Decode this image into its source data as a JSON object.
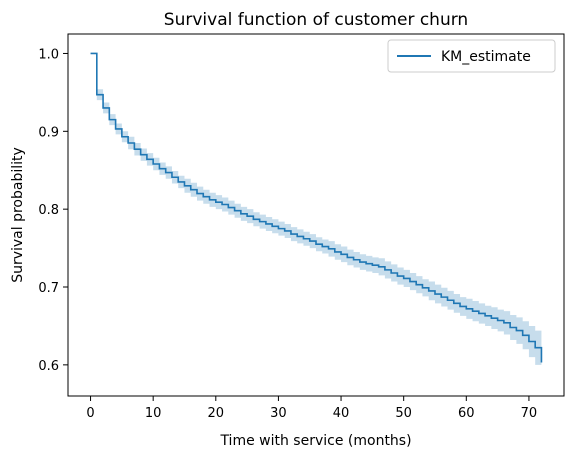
{
  "chart_data": {
    "type": "line",
    "title": "Survival function of customer churn",
    "xlabel": "Time with service (months)",
    "ylabel": "Survival probability",
    "xlim": [
      -3.6,
      75.6
    ],
    "ylim": [
      0.56,
      1.025
    ],
    "xticks": [
      0,
      10,
      20,
      30,
      40,
      50,
      60,
      70
    ],
    "yticks": [
      0.6,
      0.7,
      0.8,
      0.9,
      1.0
    ],
    "ytick_labels": [
      "0.6",
      "0.7",
      "0.8",
      "0.9",
      "1.0"
    ],
    "grid": false,
    "legend_position": "top-right",
    "colors": {
      "line": "#1f77b4",
      "band": "#1f77b4",
      "legend_border": "#cccccc"
    },
    "series": [
      {
        "name": "KM_estimate",
        "x": [
          0,
          1,
          2,
          3,
          4,
          5,
          6,
          7,
          8,
          9,
          10,
          11,
          12,
          13,
          14,
          15,
          16,
          17,
          18,
          19,
          20,
          21,
          22,
          23,
          24,
          25,
          26,
          27,
          28,
          29,
          30,
          31,
          32,
          33,
          34,
          35,
          36,
          37,
          38,
          39,
          40,
          41,
          42,
          43,
          44,
          45,
          46,
          47,
          48,
          49,
          50,
          51,
          52,
          53,
          54,
          55,
          56,
          57,
          58,
          59,
          60,
          61,
          62,
          63,
          64,
          65,
          66,
          67,
          68,
          69,
          70,
          71,
          72
        ],
        "y": [
          1.0,
          0.947,
          0.93,
          0.915,
          0.903,
          0.893,
          0.885,
          0.877,
          0.87,
          0.864,
          0.858,
          0.852,
          0.847,
          0.841,
          0.835,
          0.83,
          0.825,
          0.82,
          0.816,
          0.812,
          0.809,
          0.806,
          0.802,
          0.798,
          0.794,
          0.791,
          0.787,
          0.784,
          0.781,
          0.778,
          0.775,
          0.772,
          0.768,
          0.765,
          0.762,
          0.759,
          0.755,
          0.752,
          0.749,
          0.745,
          0.742,
          0.738,
          0.735,
          0.732,
          0.73,
          0.728,
          0.726,
          0.722,
          0.718,
          0.714,
          0.711,
          0.707,
          0.703,
          0.699,
          0.695,
          0.691,
          0.687,
          0.683,
          0.679,
          0.675,
          0.672,
          0.669,
          0.666,
          0.663,
          0.66,
          0.657,
          0.654,
          0.648,
          0.644,
          0.638,
          0.63,
          0.622,
          0.603
        ],
        "lower": [
          1.0,
          0.94,
          0.923,
          0.908,
          0.896,
          0.886,
          0.877,
          0.869,
          0.862,
          0.856,
          0.85,
          0.844,
          0.839,
          0.833,
          0.827,
          0.821,
          0.816,
          0.811,
          0.807,
          0.803,
          0.8,
          0.797,
          0.793,
          0.789,
          0.785,
          0.782,
          0.778,
          0.775,
          0.772,
          0.769,
          0.766,
          0.763,
          0.759,
          0.756,
          0.753,
          0.75,
          0.746,
          0.743,
          0.739,
          0.735,
          0.732,
          0.728,
          0.725,
          0.722,
          0.72,
          0.718,
          0.715,
          0.711,
          0.707,
          0.703,
          0.7,
          0.696,
          0.692,
          0.688,
          0.683,
          0.679,
          0.675,
          0.671,
          0.667,
          0.663,
          0.659,
          0.656,
          0.653,
          0.65,
          0.646,
          0.643,
          0.639,
          0.632,
          0.627,
          0.62,
          0.61,
          0.6,
          0.58
        ],
        "upper": [
          1.0,
          0.954,
          0.937,
          0.922,
          0.91,
          0.9,
          0.893,
          0.885,
          0.878,
          0.872,
          0.866,
          0.86,
          0.855,
          0.849,
          0.843,
          0.839,
          0.834,
          0.829,
          0.825,
          0.821,
          0.818,
          0.815,
          0.811,
          0.807,
          0.803,
          0.8,
          0.796,
          0.793,
          0.79,
          0.787,
          0.784,
          0.781,
          0.777,
          0.774,
          0.771,
          0.768,
          0.764,
          0.761,
          0.759,
          0.755,
          0.752,
          0.748,
          0.745,
          0.742,
          0.74,
          0.738,
          0.737,
          0.733,
          0.729,
          0.725,
          0.722,
          0.718,
          0.714,
          0.71,
          0.707,
          0.703,
          0.699,
          0.695,
          0.691,
          0.687,
          0.685,
          0.682,
          0.679,
          0.676,
          0.674,
          0.671,
          0.669,
          0.664,
          0.661,
          0.656,
          0.65,
          0.644,
          0.626
        ]
      }
    ]
  }
}
